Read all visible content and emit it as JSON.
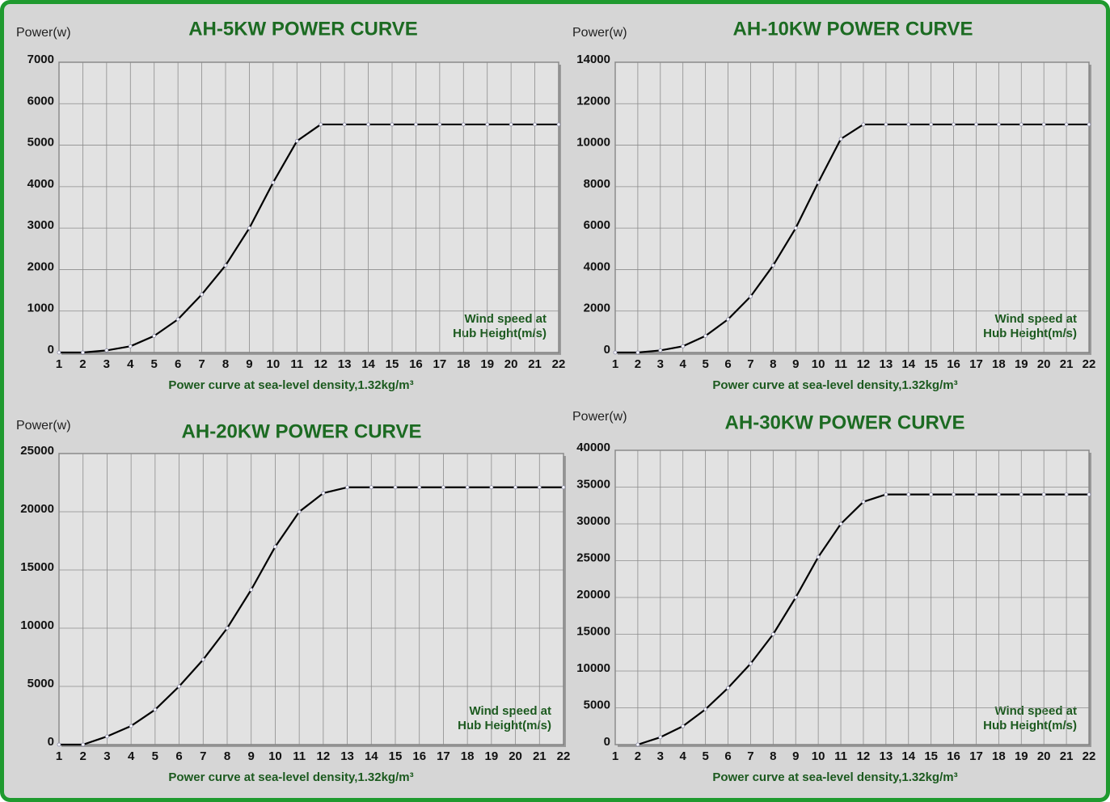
{
  "chart_data": [
    {
      "type": "line",
      "title": "AH-5KW POWER CURVE",
      "y_label": "Power(w)",
      "x_label": "Power curve at sea-level density,1.32kg/m³",
      "annotation": [
        "Wind speed at",
        "Hub Height(m/s)"
      ],
      "x": [
        1,
        2,
        3,
        4,
        5,
        6,
        7,
        8,
        9,
        10,
        11,
        12,
        13,
        14,
        15,
        16,
        17,
        18,
        19,
        20,
        21,
        22
      ],
      "values": [
        0,
        0,
        50,
        150,
        400,
        800,
        1400,
        2100,
        3000,
        4100,
        5100,
        5500,
        5500,
        5500,
        5500,
        5500,
        5500,
        5500,
        5500,
        5500,
        5500,
        5500
      ],
      "color": "#000000",
      "xlim": [
        1,
        22
      ],
      "xticks": [
        1,
        2,
        3,
        4,
        5,
        6,
        7,
        8,
        9,
        10,
        11,
        12,
        13,
        14,
        15,
        16,
        17,
        18,
        19,
        20,
        21,
        22
      ],
      "ylim": [
        0,
        7000
      ],
      "yticks": [
        0,
        1000,
        2000,
        3000,
        4000,
        5000,
        6000,
        7000
      ],
      "grid": true
    },
    {
      "type": "line",
      "title": "AH-10KW POWER CURVE",
      "y_label": "Power(w)",
      "x_label": "Power curve at sea-level density,1.32kg/m³",
      "annotation": [
        "Wind speed at",
        "Hub Height(m/s)"
      ],
      "x": [
        1,
        2,
        3,
        4,
        5,
        6,
        7,
        8,
        9,
        10,
        11,
        12,
        13,
        14,
        15,
        16,
        17,
        18,
        19,
        20,
        21,
        22
      ],
      "values": [
        0,
        0,
        100,
        300,
        800,
        1600,
        2700,
        4200,
        6000,
        8200,
        10300,
        11000,
        11000,
        11000,
        11000,
        11000,
        11000,
        11000,
        11000,
        11000,
        11000,
        11000
      ],
      "color": "#000000",
      "xlim": [
        1,
        22
      ],
      "xticks": [
        1,
        2,
        3,
        4,
        5,
        6,
        7,
        8,
        9,
        10,
        11,
        12,
        13,
        14,
        15,
        16,
        17,
        18,
        19,
        20,
        21,
        22
      ],
      "ylim": [
        0,
        14000
      ],
      "yticks": [
        0,
        2000,
        4000,
        6000,
        8000,
        10000,
        12000,
        14000
      ],
      "grid": true
    },
    {
      "type": "line",
      "title": "AH-20KW POWER CURVE",
      "y_label": "Power(w)",
      "x_label": "Power curve at sea-level density,1.32kg/m³",
      "annotation": [
        "Wind speed at",
        "Hub Height(m/s)"
      ],
      "x": [
        1,
        2,
        3,
        4,
        5,
        6,
        7,
        8,
        9,
        10,
        11,
        12,
        13,
        14,
        15,
        16,
        17,
        18,
        19,
        20,
        21,
        22
      ],
      "values": [
        0,
        0,
        700,
        1600,
        3000,
        5000,
        7300,
        10000,
        13300,
        17000,
        20000,
        21600,
        22100,
        22100,
        22100,
        22100,
        22100,
        22100,
        22100,
        22100,
        22100,
        22100
      ],
      "color": "#000000",
      "xlim": [
        1,
        22
      ],
      "xticks": [
        1,
        2,
        3,
        4,
        5,
        6,
        7,
        8,
        9,
        10,
        11,
        12,
        13,
        14,
        15,
        16,
        17,
        18,
        19,
        20,
        21,
        22
      ],
      "ylim": [
        0,
        25000
      ],
      "yticks": [
        0,
        5000,
        10000,
        15000,
        20000,
        25000
      ],
      "grid": true
    },
    {
      "type": "line",
      "title": "AH-30KW POWER CURVE",
      "y_label": "Power(w)",
      "x_label": "Power curve at sea-level density,1.32kg/m³",
      "annotation": [
        "Wind speed at",
        "Hub Height(m/s)"
      ],
      "x": [
        1,
        2,
        3,
        4,
        5,
        6,
        7,
        8,
        9,
        10,
        11,
        12,
        13,
        14,
        15,
        16,
        17,
        18,
        19,
        20,
        21,
        22
      ],
      "values": [
        null,
        0,
        1000,
        2500,
        4800,
        7700,
        11000,
        15000,
        20000,
        25500,
        30000,
        33000,
        34000,
        34000,
        34000,
        34000,
        34000,
        34000,
        34000,
        34000,
        34000,
        34000
      ],
      "color": "#000000",
      "xlim": [
        1,
        22
      ],
      "xticks": [
        1,
        2,
        3,
        4,
        5,
        6,
        7,
        8,
        9,
        10,
        11,
        12,
        13,
        14,
        15,
        16,
        17,
        18,
        19,
        20,
        21,
        22
      ],
      "ylim": [
        0,
        40000
      ],
      "yticks": [
        0,
        5000,
        10000,
        15000,
        20000,
        25000,
        30000,
        35000,
        40000
      ],
      "grid": true
    }
  ]
}
